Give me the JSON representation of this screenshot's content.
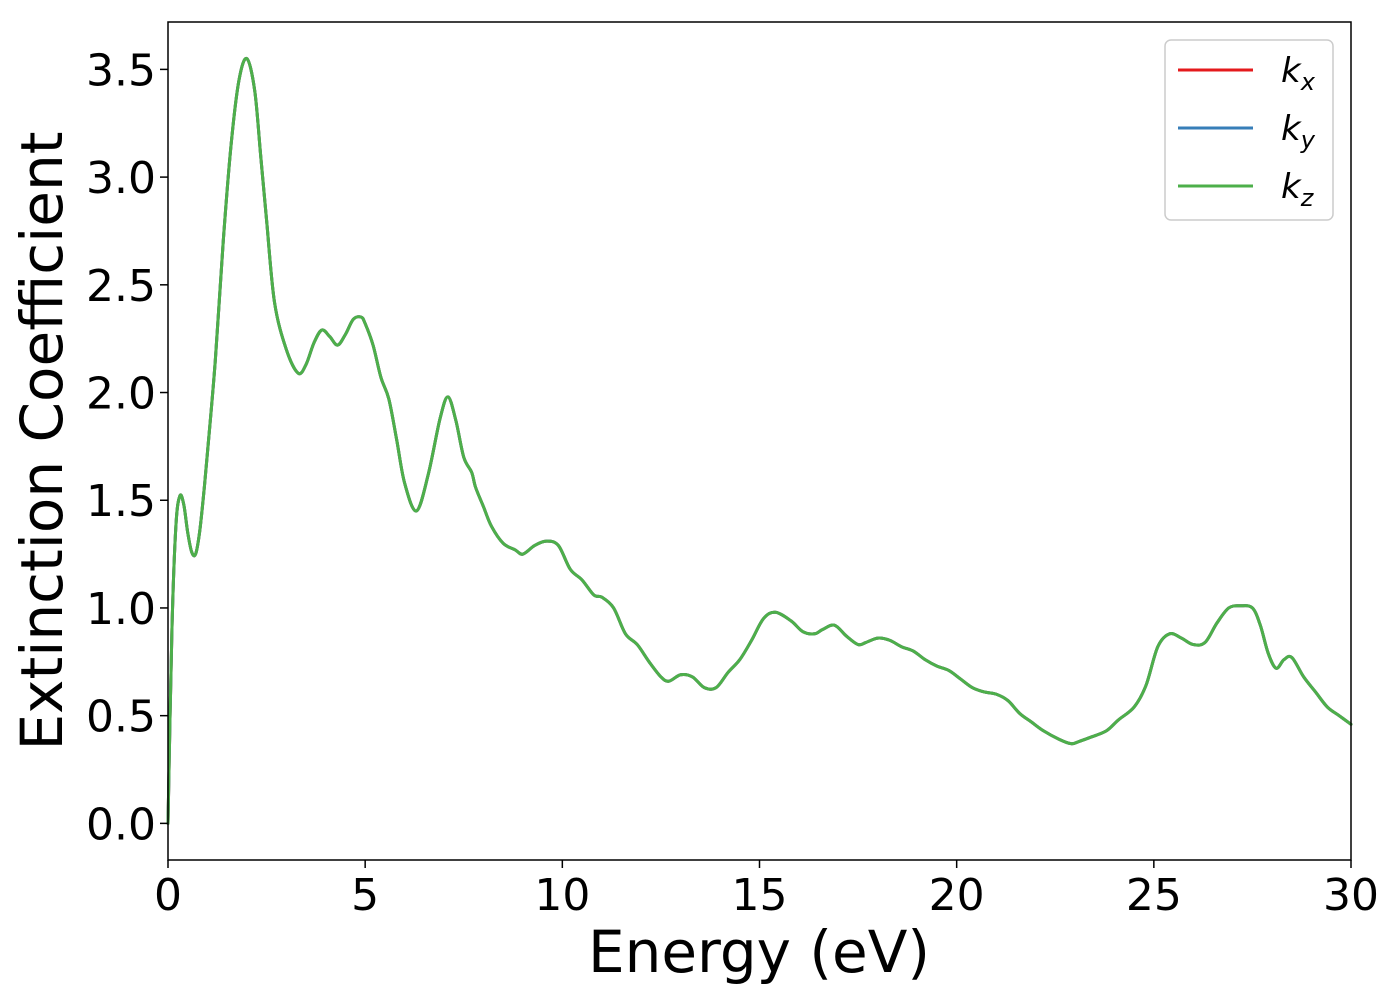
{
  "chart_data": {
    "type": "line",
    "title": "",
    "xlabel": "Energy (eV)",
    "ylabel": "Extinction Coefficient",
    "xlim": [
      0,
      30
    ],
    "ylim": [
      -0.17,
      3.72
    ],
    "xticks": [
      0,
      5,
      10,
      15,
      20,
      25,
      30
    ],
    "xtick_labels": [
      "0",
      "5",
      "10",
      "15",
      "20",
      "25",
      "30"
    ],
    "yticks": [
      0.0,
      0.5,
      1.0,
      1.5,
      2.0,
      2.5,
      3.0,
      3.5
    ],
    "ytick_labels": [
      "0.0",
      "0.5",
      "1.0",
      "1.5",
      "2.0",
      "2.5",
      "3.0",
      "3.5"
    ],
    "grid": false,
    "legend_position": "top-right",
    "x": [
      0.0,
      0.1,
      0.2,
      0.3,
      0.4,
      0.5,
      0.6,
      0.7,
      0.8,
      0.9,
      1.0,
      1.2,
      1.4,
      1.6,
      1.8,
      2.0,
      2.2,
      2.35,
      2.5,
      2.7,
      3.0,
      3.3,
      3.5,
      3.7,
      3.9,
      4.1,
      4.3,
      4.5,
      4.7,
      4.9,
      5.0,
      5.2,
      5.4,
      5.6,
      5.8,
      6.0,
      6.3,
      6.6,
      6.9,
      7.1,
      7.3,
      7.5,
      7.7,
      7.8,
      8.0,
      8.2,
      8.5,
      8.8,
      9.0,
      9.3,
      9.6,
      9.9,
      10.2,
      10.5,
      10.8,
      11.0,
      11.3,
      11.6,
      11.9,
      12.2,
      12.5,
      12.7,
      13.0,
      13.3,
      13.6,
      13.9,
      14.2,
      14.5,
      14.8,
      15.1,
      15.4,
      15.8,
      16.1,
      16.4,
      16.6,
      16.9,
      17.2,
      17.5,
      17.7,
      18.0,
      18.3,
      18.6,
      18.9,
      19.2,
      19.5,
      19.8,
      20.1,
      20.4,
      20.7,
      21.0,
      21.3,
      21.6,
      21.9,
      22.2,
      22.6,
      22.9,
      23.1,
      23.4,
      23.8,
      24.1,
      24.5,
      24.8,
      25.1,
      25.4,
      25.7,
      26.0,
      26.3,
      26.6,
      26.9,
      27.2,
      27.5,
      27.7,
      27.9,
      28.1,
      28.3,
      28.5,
      28.8,
      29.1,
      29.4,
      29.7,
      30.0
    ],
    "series": [
      {
        "name": "k_x",
        "color": "#e41a1c",
        "values": [
          0.0,
          0.9,
          1.38,
          1.52,
          1.48,
          1.35,
          1.26,
          1.25,
          1.35,
          1.52,
          1.72,
          2.15,
          2.7,
          3.15,
          3.45,
          3.55,
          3.4,
          3.1,
          2.8,
          2.42,
          2.2,
          2.09,
          2.13,
          2.23,
          2.29,
          2.26,
          2.22,
          2.27,
          2.34,
          2.35,
          2.32,
          2.22,
          2.07,
          1.97,
          1.78,
          1.58,
          1.45,
          1.62,
          1.88,
          1.98,
          1.87,
          1.7,
          1.63,
          1.56,
          1.47,
          1.38,
          1.3,
          1.27,
          1.25,
          1.29,
          1.31,
          1.29,
          1.18,
          1.13,
          1.06,
          1.05,
          1.0,
          0.88,
          0.83,
          0.75,
          0.68,
          0.66,
          0.69,
          0.68,
          0.63,
          0.63,
          0.7,
          0.76,
          0.85,
          0.95,
          0.98,
          0.94,
          0.89,
          0.88,
          0.9,
          0.92,
          0.87,
          0.83,
          0.84,
          0.86,
          0.85,
          0.82,
          0.8,
          0.76,
          0.73,
          0.71,
          0.67,
          0.63,
          0.61,
          0.6,
          0.57,
          0.51,
          0.47,
          0.43,
          0.39,
          0.37,
          0.38,
          0.4,
          0.43,
          0.48,
          0.54,
          0.64,
          0.82,
          0.88,
          0.86,
          0.83,
          0.84,
          0.93,
          1.0,
          1.01,
          1.0,
          0.92,
          0.79,
          0.72,
          0.76,
          0.77,
          0.68,
          0.61,
          0.54,
          0.5,
          0.46
        ]
      },
      {
        "name": "k_y",
        "color": "#377eb8",
        "values": [
          0.0,
          0.9,
          1.38,
          1.52,
          1.48,
          1.35,
          1.26,
          1.25,
          1.35,
          1.52,
          1.72,
          2.15,
          2.7,
          3.15,
          3.45,
          3.55,
          3.4,
          3.1,
          2.8,
          2.42,
          2.2,
          2.09,
          2.13,
          2.23,
          2.29,
          2.26,
          2.22,
          2.27,
          2.34,
          2.35,
          2.32,
          2.22,
          2.07,
          1.97,
          1.78,
          1.58,
          1.45,
          1.62,
          1.88,
          1.98,
          1.87,
          1.7,
          1.63,
          1.56,
          1.47,
          1.38,
          1.3,
          1.27,
          1.25,
          1.29,
          1.31,
          1.29,
          1.18,
          1.13,
          1.06,
          1.05,
          1.0,
          0.88,
          0.83,
          0.75,
          0.68,
          0.66,
          0.69,
          0.68,
          0.63,
          0.63,
          0.7,
          0.76,
          0.85,
          0.95,
          0.98,
          0.94,
          0.89,
          0.88,
          0.9,
          0.92,
          0.87,
          0.83,
          0.84,
          0.86,
          0.85,
          0.82,
          0.8,
          0.76,
          0.73,
          0.71,
          0.67,
          0.63,
          0.61,
          0.6,
          0.57,
          0.51,
          0.47,
          0.43,
          0.39,
          0.37,
          0.38,
          0.4,
          0.43,
          0.48,
          0.54,
          0.64,
          0.82,
          0.88,
          0.86,
          0.83,
          0.84,
          0.93,
          1.0,
          1.01,
          1.0,
          0.92,
          0.79,
          0.72,
          0.76,
          0.77,
          0.68,
          0.61,
          0.54,
          0.5,
          0.46
        ]
      },
      {
        "name": "k_z",
        "color": "#4daf4a",
        "values": [
          0.0,
          0.9,
          1.38,
          1.52,
          1.48,
          1.35,
          1.26,
          1.25,
          1.35,
          1.52,
          1.72,
          2.15,
          2.7,
          3.15,
          3.45,
          3.55,
          3.4,
          3.1,
          2.8,
          2.42,
          2.2,
          2.09,
          2.13,
          2.23,
          2.29,
          2.26,
          2.22,
          2.27,
          2.34,
          2.35,
          2.32,
          2.22,
          2.07,
          1.97,
          1.78,
          1.58,
          1.45,
          1.62,
          1.88,
          1.98,
          1.87,
          1.7,
          1.63,
          1.56,
          1.47,
          1.38,
          1.3,
          1.27,
          1.25,
          1.29,
          1.31,
          1.29,
          1.18,
          1.13,
          1.06,
          1.05,
          1.0,
          0.88,
          0.83,
          0.75,
          0.68,
          0.66,
          0.69,
          0.68,
          0.63,
          0.63,
          0.7,
          0.76,
          0.85,
          0.95,
          0.98,
          0.94,
          0.89,
          0.88,
          0.9,
          0.92,
          0.87,
          0.83,
          0.84,
          0.86,
          0.85,
          0.82,
          0.8,
          0.76,
          0.73,
          0.71,
          0.67,
          0.63,
          0.61,
          0.6,
          0.57,
          0.51,
          0.47,
          0.43,
          0.39,
          0.37,
          0.38,
          0.4,
          0.43,
          0.48,
          0.54,
          0.64,
          0.82,
          0.88,
          0.86,
          0.83,
          0.84,
          0.93,
          1.0,
          1.01,
          1.0,
          0.92,
          0.79,
          0.72,
          0.76,
          0.77,
          0.68,
          0.61,
          0.54,
          0.5,
          0.46
        ]
      }
    ],
    "legend": [
      {
        "base": "k",
        "sub": "x",
        "color": "#e41a1c"
      },
      {
        "base": "k",
        "sub": "y",
        "color": "#377eb8"
      },
      {
        "base": "k",
        "sub": "z",
        "color": "#4daf4a"
      }
    ]
  }
}
